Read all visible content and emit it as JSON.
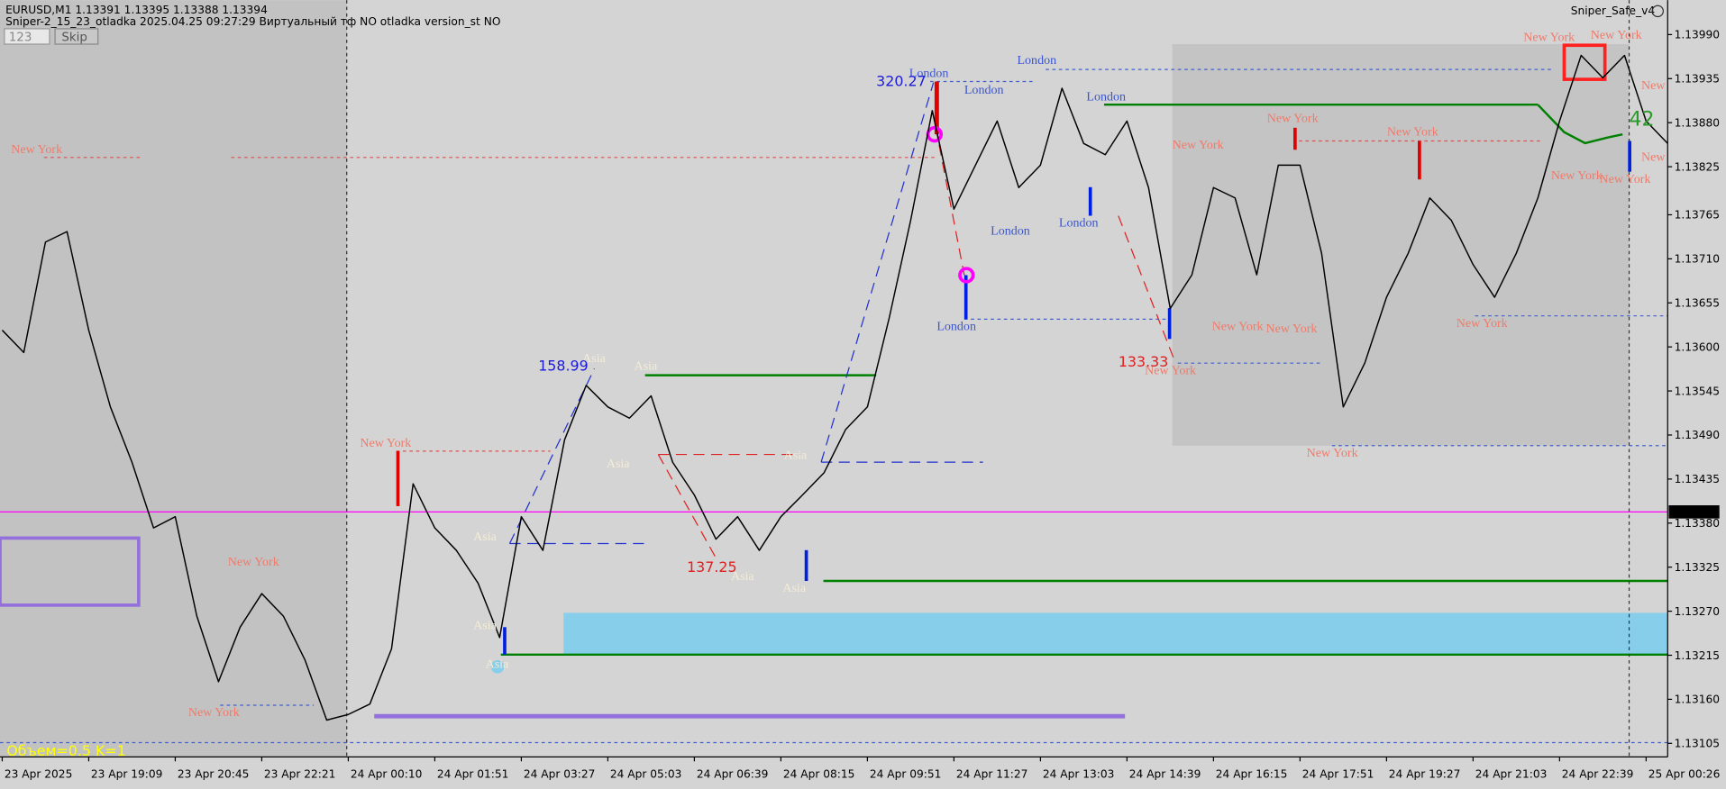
{
  "chart_data": {
    "type": "line",
    "header": [
      "EURUSD,M1  1.13391 1.13395 1.13388 1.13394",
      "Sniper-2_15_23_otladka  2025.04.25 09:27:29  Виртуальный тф NO  otladka  version_st NO"
    ],
    "input_text": "123",
    "button": "Skip",
    "indicator_name": "Sniper_Safe_v4",
    "footer_note": "Объем=0.5 K=1",
    "color": "#000000",
    "categories": [
      "23 Apr 2025",
      null,
      null,
      null,
      "23 Apr 19:09",
      null,
      null,
      null,
      "23 Apr 20:45",
      null,
      null,
      null,
      "23 Apr 22:21",
      null,
      null,
      null,
      "24 Apr 00:10",
      null,
      null,
      null,
      "24 Apr 01:51",
      null,
      null,
      null,
      "24 Apr 03:27",
      null,
      null,
      null,
      "24 Apr 05:03",
      null,
      null,
      null,
      "24 Apr 06:39",
      null,
      null,
      null,
      "24 Apr 08:15",
      null,
      null,
      null,
      "24 Apr 09:51",
      null,
      null,
      null,
      "24 Apr 11:27",
      null,
      null,
      null,
      "24 Apr 13:03",
      null,
      null,
      null,
      "24 Apr 14:39",
      null,
      null,
      null,
      "24 Apr 16:15",
      null,
      null,
      null,
      "24 Apr 17:51",
      null,
      null,
      null,
      "24 Apr 19:27",
      null,
      null,
      null,
      "24 Apr 21:03",
      null,
      null,
      null,
      "24 Apr 22:39",
      null,
      null,
      null,
      "25 Apr 00:26",
      null
    ],
    "values": [
      1.13621,
      1.13593,
      1.13731,
      1.13744,
      1.13621,
      1.13525,
      1.13456,
      1.13374,
      1.13388,
      1.13264,
      1.13182,
      1.1325,
      1.13292,
      1.13264,
      1.13209,
      1.13134,
      1.13141,
      1.13154,
      1.13223,
      1.13429,
      1.13374,
      1.13346,
      1.13305,
      1.13237,
      1.13388,
      1.13346,
      1.13484,
      1.13552,
      1.13525,
      1.13511,
      1.13539,
      1.13456,
      1.13415,
      1.1336,
      1.13388,
      1.13346,
      1.13388,
      1.13415,
      1.13443,
      1.13497,
      1.13525,
      1.13635,
      1.13758,
      1.13895,
      1.13772,
      1.13827,
      1.13882,
      1.13799,
      1.13827,
      1.13923,
      1.13854,
      1.1384,
      1.13882,
      1.13799,
      1.13648,
      1.1369,
      1.13799,
      1.13786,
      1.1369,
      1.13827,
      1.13827,
      1.13717,
      1.13525,
      1.1358,
      1.13662,
      1.13717,
      1.13786,
      1.13758,
      1.13703,
      1.13662,
      1.13717,
      1.13786,
      1.13882,
      1.13964,
      1.13936,
      1.13964,
      1.13882,
      1.13854
    ],
    "ylim": [
      1.13088,
      1.14033
    ],
    "yticks": [
      1.13105,
      {
        "value": 1.1316,
        "label": "1.13160"
      },
      1.13215,
      {
        "value": 1.1327,
        "label": "1.13270"
      },
      1.13325,
      {
        "value": 1.1338,
        "label": "1.13380"
      },
      1.13435,
      {
        "value": 1.1349,
        "label": "1.13490"
      },
      1.13545,
      {
        "value": 1.136,
        "label": "1.13600"
      },
      1.13655,
      {
        "value": 1.1371,
        "label": "1.13710"
      },
      1.13765,
      1.13825,
      {
        "value": 1.1388,
        "label": "1.13880"
      },
      1.13935,
      {
        "value": 1.1399,
        "label": "1.13990"
      }
    ],
    "current_price": 1.13394,
    "current_price_color": "#ff00ff",
    "annotations": [
      "New York",
      "New York",
      "New York",
      "New York",
      "New York",
      "New York",
      "New York",
      "New York",
      "New York",
      "New York",
      "New York",
      "New York",
      "New York",
      "New York",
      "New York",
      "New York",
      "New",
      "New",
      "London",
      "London",
      "London",
      "London",
      "London",
      "London",
      "London",
      "Asia",
      "Asia",
      "Asia",
      "Asia",
      "Asia",
      "Asia",
      "Asia",
      "Asia",
      "Asia",
      "320.27",
      "158.99",
      "137.25",
      "133.33",
      "42"
    ]
  }
}
